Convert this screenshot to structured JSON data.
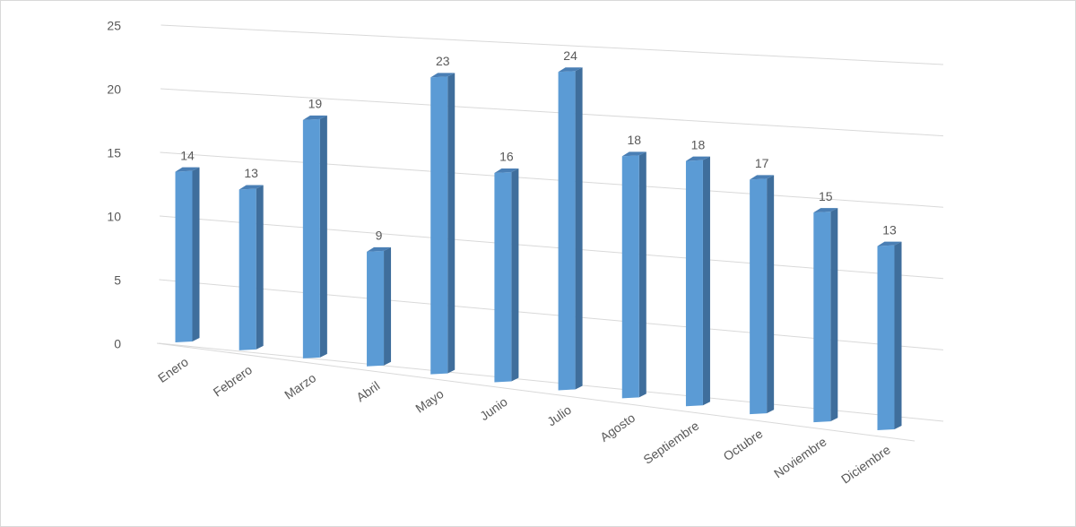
{
  "chart_data": {
    "type": "bar3d",
    "categories": [
      "Enero",
      "Febrero",
      "Marzo",
      "Abril",
      "Mayo",
      "Junio",
      "Julio",
      "Agosto",
      "Septiembre",
      "Octubre",
      "Noviembre",
      "Diciembre"
    ],
    "values": [
      14,
      13,
      19,
      9,
      23,
      16,
      24,
      18,
      18,
      17,
      15,
      13
    ],
    "color": "#5b9bd5",
    "ylim": [
      0,
      25
    ],
    "yticks": [
      0,
      5,
      10,
      15,
      20,
      25
    ],
    "grid": true
  }
}
